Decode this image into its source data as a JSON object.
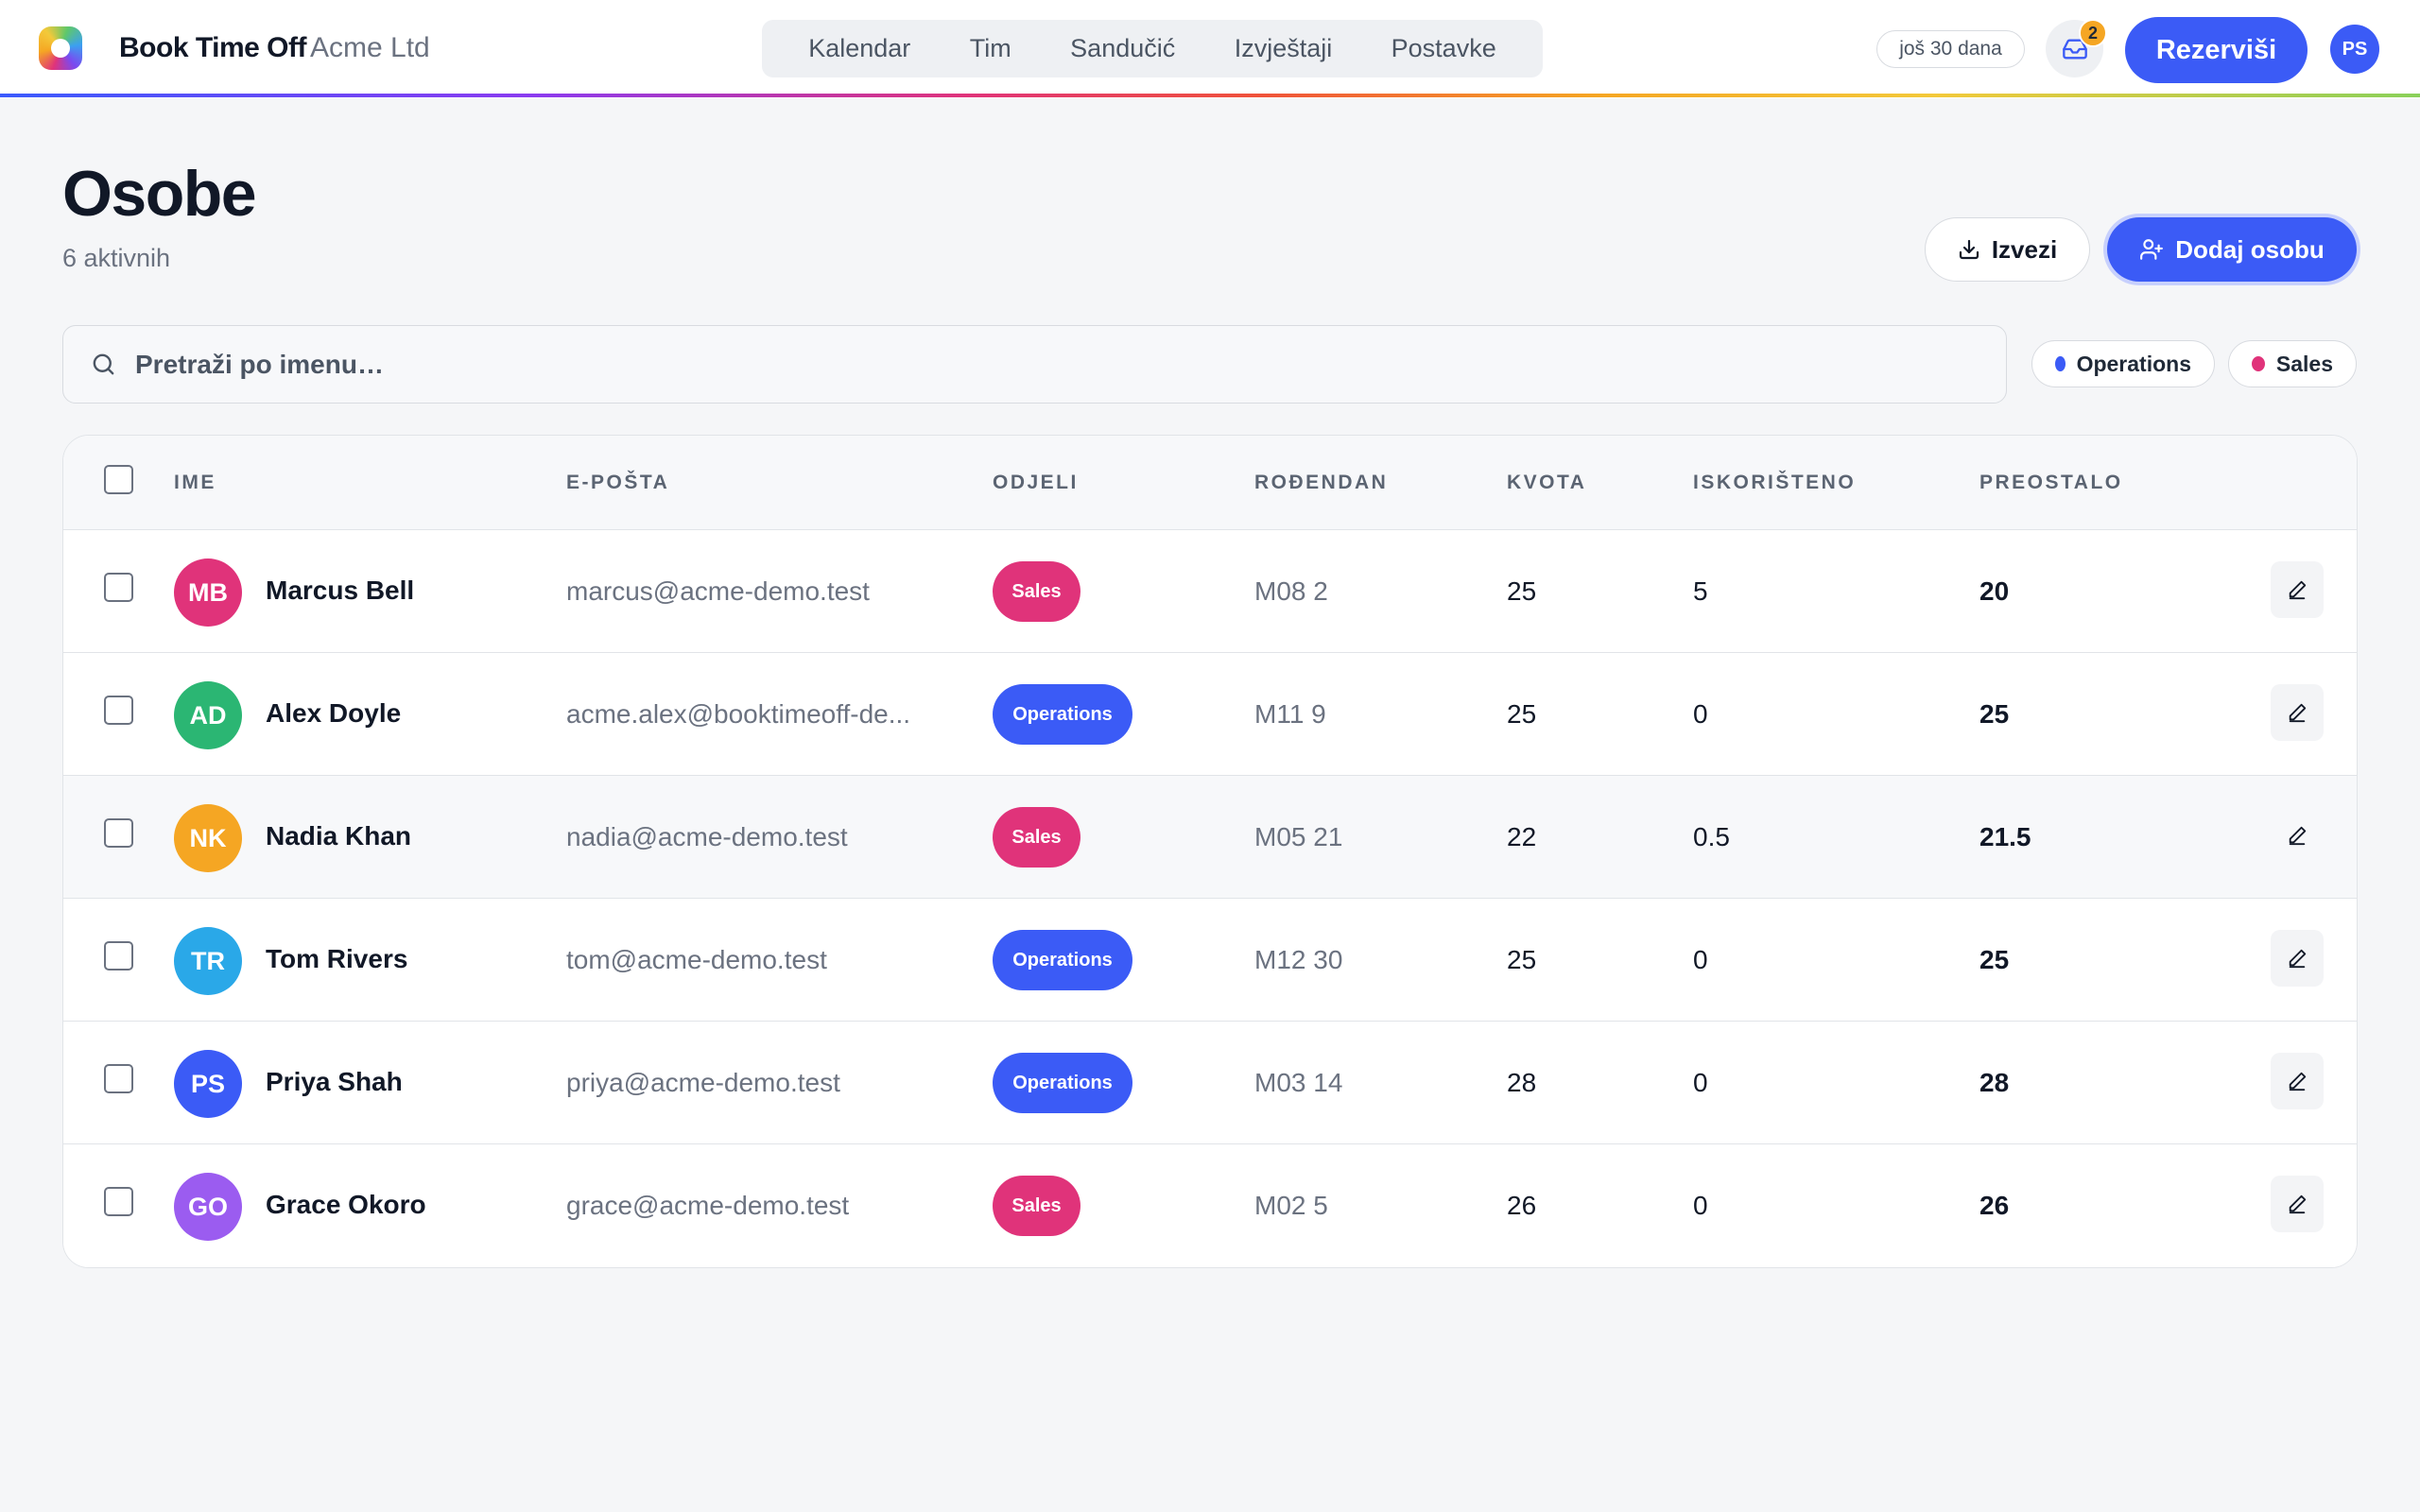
{
  "app": {
    "name": "Book Time Off",
    "org": "Acme Ltd",
    "trial": "još 30 dana",
    "inbox_count": "2",
    "reserve_label": "Rezerviši",
    "user_initials": "PS"
  },
  "nav": [
    "Kalendar",
    "Tim",
    "Sandučić",
    "Izvještaji",
    "Postavke"
  ],
  "page": {
    "title": "Osobe",
    "subtitle": "6 aktivnih",
    "export_label": "Izvezi",
    "add_label": "Dodaj osobu"
  },
  "search": {
    "placeholder": "Pretraži po imenu…",
    "value": ""
  },
  "filters": [
    {
      "label": "Operations",
      "color": "#3b5bf6"
    },
    {
      "label": "Sales",
      "color": "#e0337a"
    }
  ],
  "table": {
    "headers": {
      "name": "IME",
      "email": "E-POŠTA",
      "departments": "ODJELI",
      "birthday": "ROĐENDAN",
      "quota": "KVOTA",
      "used": "ISKORIŠTENO",
      "remaining": "PREOSTALO"
    },
    "rows": [
      {
        "initials": "MB",
        "avatar_color": "#e0337a",
        "name": "Marcus Bell",
        "email": "marcus@acme-demo.test",
        "department": "Sales",
        "birthday": "M08 2",
        "quota": "25",
        "used": "5",
        "remaining": "20"
      },
      {
        "initials": "AD",
        "avatar_color": "#2bb673",
        "name": "Alex Doyle",
        "email": "acme.alex@booktimeoff-de...",
        "department": "Operations",
        "birthday": "M11 9",
        "quota": "25",
        "used": "0",
        "remaining": "25"
      },
      {
        "initials": "NK",
        "avatar_color": "#f5a623",
        "name": "Nadia Khan",
        "email": "nadia@acme-demo.test",
        "department": "Sales",
        "birthday": "M05 21",
        "quota": "22",
        "used": "0.5",
        "remaining": "21.5"
      },
      {
        "initials": "TR",
        "avatar_color": "#2aa8e8",
        "name": "Tom Rivers",
        "email": "tom@acme-demo.test",
        "department": "Operations",
        "birthday": "M12 30",
        "quota": "25",
        "used": "0",
        "remaining": "25"
      },
      {
        "initials": "PS",
        "avatar_color": "#3b5bf6",
        "name": "Priya Shah",
        "email": "priya@acme-demo.test",
        "department": "Operations",
        "birthday": "M03 14",
        "quota": "28",
        "used": "0",
        "remaining": "28"
      },
      {
        "initials": "GO",
        "avatar_color": "#9b5cf0",
        "name": "Grace Okoro",
        "email": "grace@acme-demo.test",
        "department": "Sales",
        "birthday": "M02 5",
        "quota": "26",
        "used": "0",
        "remaining": "26"
      }
    ]
  },
  "colors": {
    "accent": "#3b5bf6",
    "sales": "#e0337a",
    "operations": "#3b5bf6",
    "notification": "#f5a623"
  },
  "icons": {
    "logo": "logo-icon",
    "inbox": "inbox-icon",
    "export": "download-icon",
    "add_person": "user-plus-icon",
    "search": "search-icon",
    "edit": "pencil-icon"
  }
}
